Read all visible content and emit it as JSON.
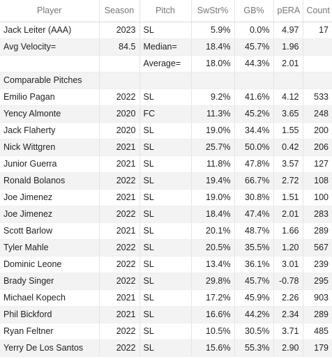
{
  "columns": [
    "Player",
    "Season",
    "Pitch",
    "SwStr%",
    "GB%",
    "pERA",
    "Count"
  ],
  "rows": [
    [
      "Jack Leiter (AAA)",
      "2023",
      "SL",
      "5.9%",
      "0.0%",
      "4.97",
      "17"
    ],
    [
      "Avg Velocity=",
      "84.5",
      "Median=",
      "18.4%",
      "45.7%",
      "1.96",
      ""
    ],
    [
      "",
      "",
      "Average=",
      "18.0%",
      "44.3%",
      "2.01",
      ""
    ],
    [
      "Comparable Pitches",
      "",
      "",
      "",
      "",
      "",
      ""
    ],
    [
      "Emilio Pagan",
      "2022",
      "SL",
      "9.2%",
      "41.6%",
      "4.12",
      "533"
    ],
    [
      "Yency Almonte",
      "2020",
      "FC",
      "11.3%",
      "45.2%",
      "3.65",
      "248"
    ],
    [
      "Jack Flaherty",
      "2020",
      "SL",
      "19.0%",
      "34.4%",
      "1.55",
      "200"
    ],
    [
      "Nick Wittgren",
      "2021",
      "SL",
      "25.7%",
      "50.0%",
      "0.42",
      "206"
    ],
    [
      "Junior Guerra",
      "2021",
      "SL",
      "11.8%",
      "47.8%",
      "3.57",
      "127"
    ],
    [
      "Ronald Bolanos",
      "2022",
      "SL",
      "19.4%",
      "66.7%",
      "2.72",
      "108"
    ],
    [
      "Joe Jimenez",
      "2021",
      "SL",
      "19.0%",
      "30.8%",
      "1.51",
      "100"
    ],
    [
      "Joe Jimenez",
      "2022",
      "SL",
      "18.4%",
      "47.4%",
      "2.01",
      "283"
    ],
    [
      "Scott Barlow",
      "2021",
      "SL",
      "20.1%",
      "48.7%",
      "1.66",
      "289"
    ],
    [
      "Tyler Mahle",
      "2022",
      "SL",
      "20.5%",
      "35.5%",
      "1.20",
      "567"
    ],
    [
      "Dominic Leone",
      "2022",
      "SL",
      "13.4%",
      "36.1%",
      "3.01",
      "239"
    ],
    [
      "Brady Singer",
      "2022",
      "SL",
      "29.8%",
      "45.7%",
      "-0.78",
      "295"
    ],
    [
      "Michael Kopech",
      "2021",
      "SL",
      "17.2%",
      "45.9%",
      "2.26",
      "903"
    ],
    [
      "Phil Bickford",
      "2021",
      "SL",
      "16.6%",
      "44.2%",
      "2.34",
      "289"
    ],
    [
      "Ryan Feltner",
      "2022",
      "SL",
      "10.5%",
      "30.5%",
      "3.71",
      "485"
    ],
    [
      "Yerry De Los Santos",
      "2022",
      "SL",
      "15.6%",
      "55.3%",
      "2.90",
      "179"
    ]
  ]
}
